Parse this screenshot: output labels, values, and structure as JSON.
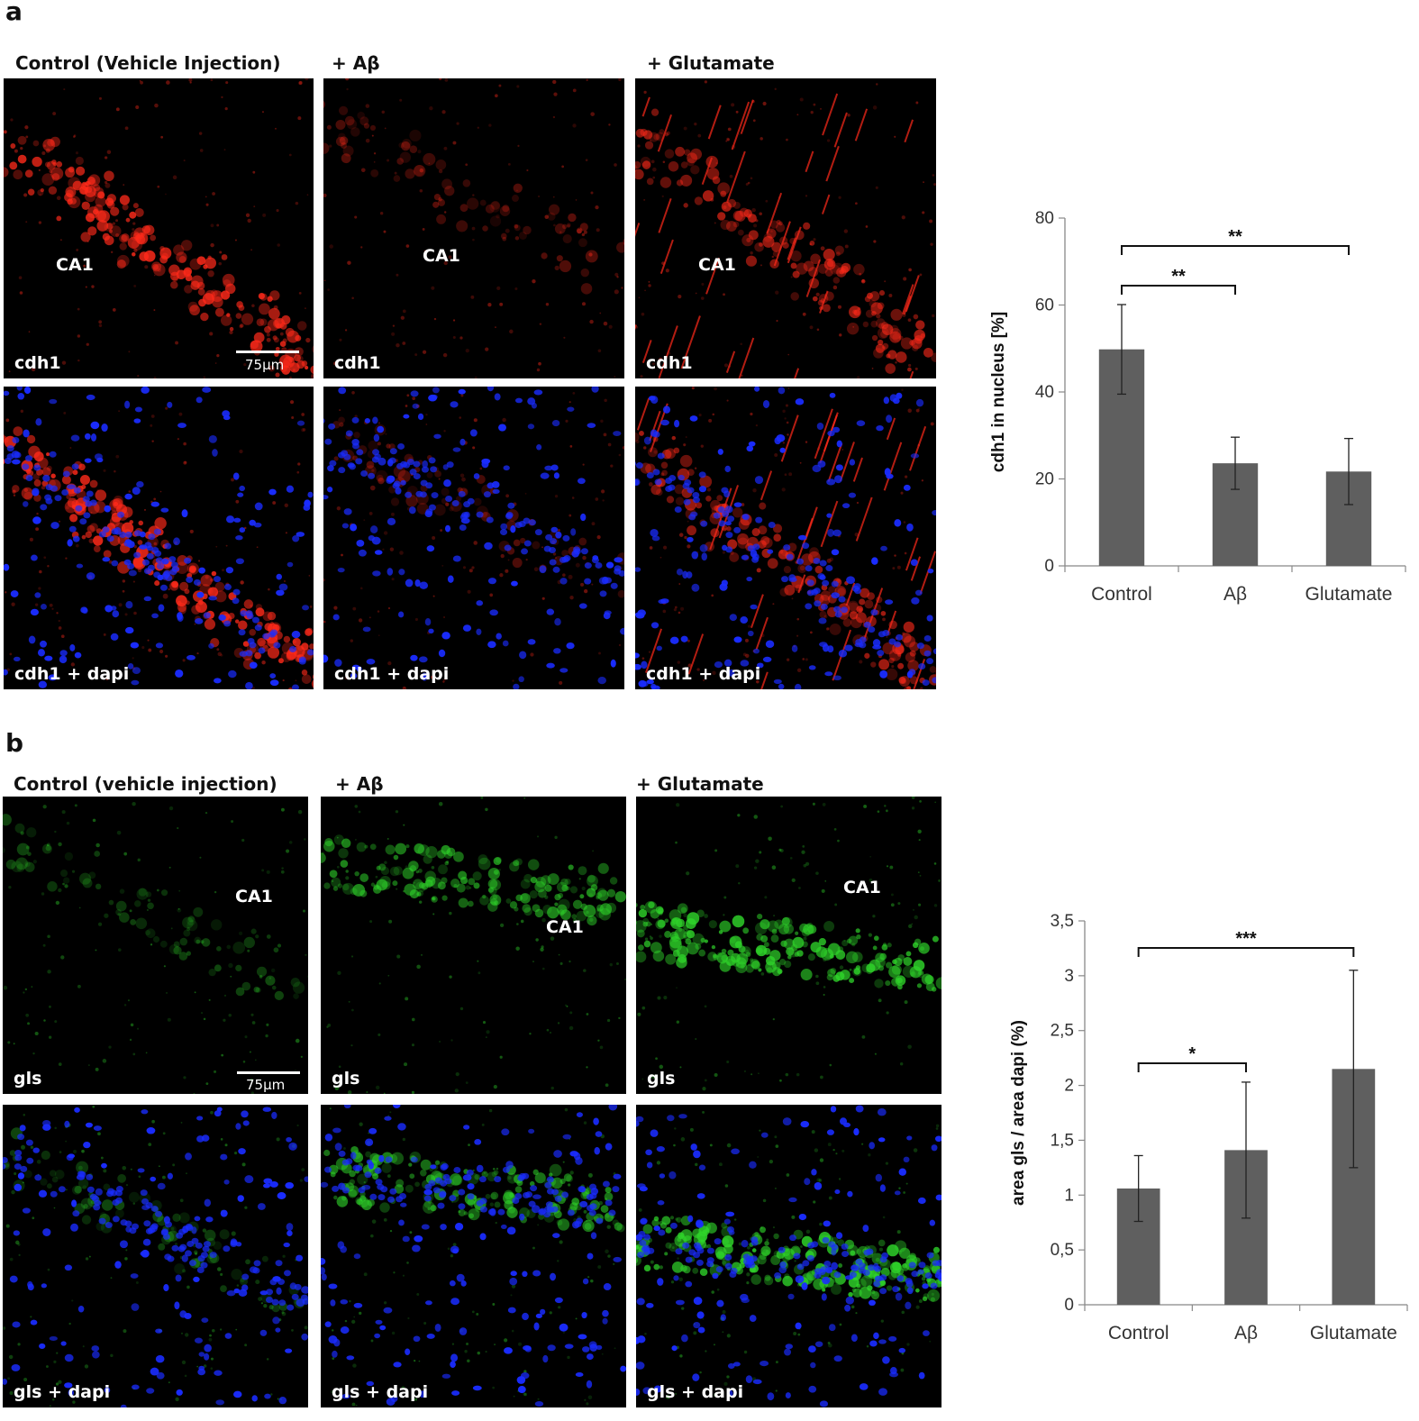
{
  "panel_a": {
    "letter": "a",
    "columns": [
      "Control (Vehicle Injection)",
      "+ Aβ",
      "+ Glutamate"
    ],
    "region_label": "CA1",
    "scale_bar": "75μm",
    "row_labels": [
      "cdh1",
      "cdh1 + dapi"
    ]
  },
  "panel_b": {
    "letter": "b",
    "columns": [
      "Control (vehicle injection)",
      "+ Aβ",
      "+ Glutamate"
    ],
    "region_label": "CA1",
    "scale_bar": "75μm",
    "row_labels": [
      "gls",
      "gls + dapi"
    ]
  },
  "colors": {
    "bar": "#5f5f5f",
    "cdh1": "#ff2a1a",
    "dapi": "#1a2cff",
    "gls": "#2fd42a"
  },
  "chart_data": [
    {
      "type": "bar",
      "categories": [
        "Control",
        "Aβ",
        "Glutamate"
      ],
      "values": [
        49.8,
        23.6,
        21.7
      ],
      "errors": [
        10.3,
        6.0,
        7.6
      ],
      "ylabel": "cdh1 in nucleus [%]",
      "ylim": [
        0,
        80
      ],
      "yticks": [
        "0",
        "20",
        "40",
        "60",
        "80"
      ],
      "significance": [
        {
          "from": 0,
          "to": 1,
          "label": "**"
        },
        {
          "from": 0,
          "to": 2,
          "label": "**"
        }
      ]
    },
    {
      "type": "bar",
      "categories": [
        "Control",
        "Aβ",
        "Glutamate"
      ],
      "values": [
        1.06,
        1.41,
        2.15
      ],
      "errors": [
        0.3,
        0.62,
        0.9
      ],
      "ylabel": "area gls / area dapi (%)",
      "ylim": [
        0,
        3.5
      ],
      "yticks": [
        "0",
        "0,5",
        "1",
        "1,5",
        "2",
        "2,5",
        "3",
        "3,5"
      ],
      "significance": [
        {
          "from": 0,
          "to": 1,
          "label": "*"
        },
        {
          "from": 0,
          "to": 2,
          "label": "***"
        }
      ]
    }
  ]
}
